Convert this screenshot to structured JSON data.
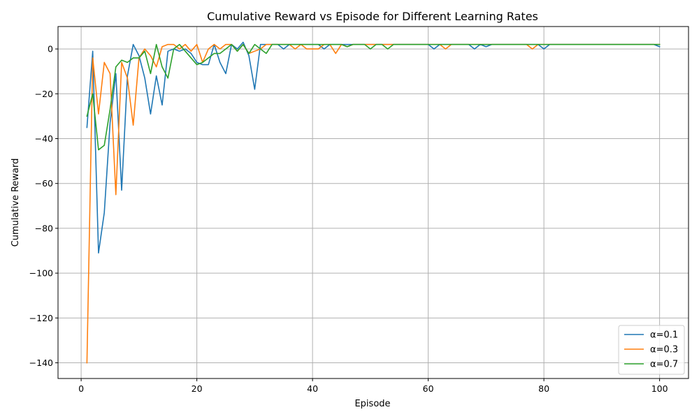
{
  "chart_data": {
    "type": "line",
    "title": "Cumulative Reward vs Episode for Different Learning Rates",
    "xlabel": "Episode",
    "ylabel": "Cumulative Reward",
    "xlim": [
      -4,
      105
    ],
    "ylim": [
      -147,
      10
    ],
    "xticks": [
      0,
      20,
      40,
      60,
      80,
      100
    ],
    "yticks": [
      0,
      -20,
      -40,
      -60,
      -80,
      -100,
      -120,
      -140
    ],
    "grid": true,
    "legend_position": "lower-right",
    "x": [
      1,
      2,
      3,
      4,
      5,
      6,
      7,
      8,
      9,
      10,
      11,
      12,
      13,
      14,
      15,
      16,
      17,
      18,
      19,
      20,
      21,
      22,
      23,
      24,
      25,
      26,
      27,
      28,
      29,
      30,
      31,
      32,
      33,
      34,
      35,
      36,
      37,
      38,
      39,
      40,
      41,
      42,
      43,
      44,
      45,
      46,
      47,
      48,
      49,
      50,
      51,
      52,
      53,
      54,
      55,
      56,
      57,
      58,
      59,
      60,
      61,
      62,
      63,
      64,
      65,
      66,
      67,
      68,
      69,
      70,
      71,
      72,
      73,
      74,
      75,
      76,
      77,
      78,
      79,
      80,
      81,
      82,
      83,
      84,
      85,
      86,
      87,
      88,
      89,
      90,
      91,
      92,
      93,
      94,
      95,
      96,
      97,
      98,
      99,
      100
    ],
    "series": [
      {
        "name": "α=0.1",
        "color": "#1f77b4",
        "values": [
          -35,
          -1,
          -91,
          -73,
          -33,
          -11,
          -63,
          -12,
          2,
          -3,
          -13,
          -29,
          -12,
          -25,
          -1,
          0,
          -1,
          0,
          -2,
          -6,
          -7,
          -7,
          2,
          -6,
          -11,
          2,
          0,
          3,
          -3,
          -18,
          2,
          2,
          2,
          2,
          0,
          2,
          2,
          2,
          2,
          2,
          2,
          0,
          2,
          2,
          2,
          2,
          2,
          2,
          2,
          2,
          2,
          2,
          2,
          2,
          2,
          2,
          2,
          2,
          2,
          2,
          0,
          2,
          2,
          2,
          2,
          2,
          2,
          0,
          2,
          1,
          2,
          2,
          2,
          2,
          2,
          2,
          2,
          2,
          2,
          0,
          2,
          2,
          2,
          2,
          2,
          2,
          2,
          2,
          2,
          2,
          2,
          2,
          2,
          2,
          2,
          2,
          2,
          2,
          2,
          1
        ]
      },
      {
        "name": "α=0.3",
        "color": "#ff7f0e",
        "values": [
          -140,
          -4,
          -29,
          -6,
          -11,
          -65,
          -6,
          -13,
          -34,
          -4,
          0,
          -3,
          -8,
          1,
          2,
          2,
          0,
          2,
          -1,
          2,
          -6,
          0,
          2,
          0,
          2,
          2,
          -1,
          2,
          -2,
          -1,
          0,
          2,
          2,
          2,
          2,
          2,
          0,
          2,
          0,
          0,
          0,
          2,
          2,
          -2,
          2,
          1,
          2,
          2,
          2,
          2,
          2,
          2,
          2,
          2,
          2,
          2,
          2,
          2,
          2,
          2,
          2,
          2,
          0,
          2,
          2,
          2,
          2,
          2,
          2,
          2,
          2,
          2,
          2,
          2,
          2,
          2,
          2,
          0,
          2,
          2,
          2,
          2,
          2,
          2,
          2,
          2,
          2,
          2,
          2,
          2,
          2,
          2,
          2,
          2,
          2,
          2,
          2,
          2,
          2,
          2
        ]
      },
      {
        "name": "α=0.7",
        "color": "#2ca02c",
        "values": [
          -30,
          -20,
          -45,
          -43,
          -27,
          -8,
          -5,
          -6,
          -4,
          -4,
          -1,
          -11,
          2,
          -8,
          -13,
          0,
          2,
          -1,
          -4,
          -7,
          -6,
          -4,
          -2,
          -2,
          0,
          2,
          -1,
          2,
          -2,
          2,
          0,
          -2,
          2,
          2,
          2,
          2,
          2,
          2,
          2,
          2,
          2,
          2,
          2,
          2,
          2,
          1,
          2,
          2,
          2,
          0,
          2,
          2,
          0,
          2,
          2,
          2,
          2,
          2,
          2,
          2,
          2,
          2,
          2,
          2,
          2,
          2,
          2,
          2,
          2,
          2,
          2,
          2,
          2,
          2,
          2,
          2,
          2,
          2,
          2,
          2,
          2,
          2,
          2,
          2,
          2,
          2,
          2,
          2,
          2,
          2,
          2,
          2,
          2,
          2,
          2,
          2,
          2,
          2,
          2,
          2
        ]
      }
    ]
  }
}
